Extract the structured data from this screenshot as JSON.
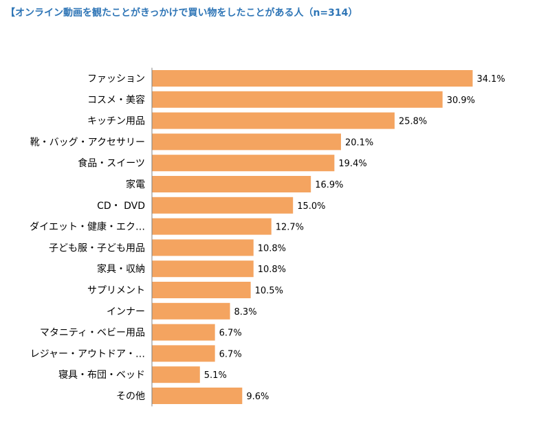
{
  "title": "【オンライン動画を観たことがきっかけで買い物をしたことがある人（n=314）",
  "colors": {
    "bar": "#F4A460",
    "title": "#2E75B6",
    "axis": "#808080"
  },
  "chart_data": {
    "type": "bar",
    "orientation": "horizontal",
    "title": "【オンライン動画を観たことがきっかけで買い物をしたことがある人（n=314）",
    "xlabel": "",
    "ylabel": "",
    "xlim": [
      0,
      40
    ],
    "grid": false,
    "categories": [
      "ファッション",
      "コスメ・美容",
      "キッチン用品",
      "靴・バッグ・アクセサリー",
      "食品・スイーツ",
      "家電",
      "CD・ DVD",
      "ダイエット・健康・エク…",
      "子ども服・子ども用品",
      "家具・収納",
      "サプリメント",
      "インナー",
      "マタニティ・ベビー用品",
      "レジャー・アウトドア・…",
      "寝具・布団・ベッド",
      "その他"
    ],
    "values": [
      34.1,
      30.9,
      25.8,
      20.1,
      19.4,
      16.9,
      15.0,
      12.7,
      10.8,
      10.8,
      10.5,
      8.3,
      6.7,
      6.7,
      5.1,
      9.6
    ],
    "value_labels": [
      "34.1%",
      "30.9%",
      "25.8%",
      "20.1%",
      "19.4%",
      "16.9%",
      "15.0%",
      "12.7%",
      "10.8%",
      "10.8%",
      "10.5%",
      "8.3%",
      "6.7%",
      "6.7%",
      "5.1%",
      "9.6%"
    ]
  }
}
